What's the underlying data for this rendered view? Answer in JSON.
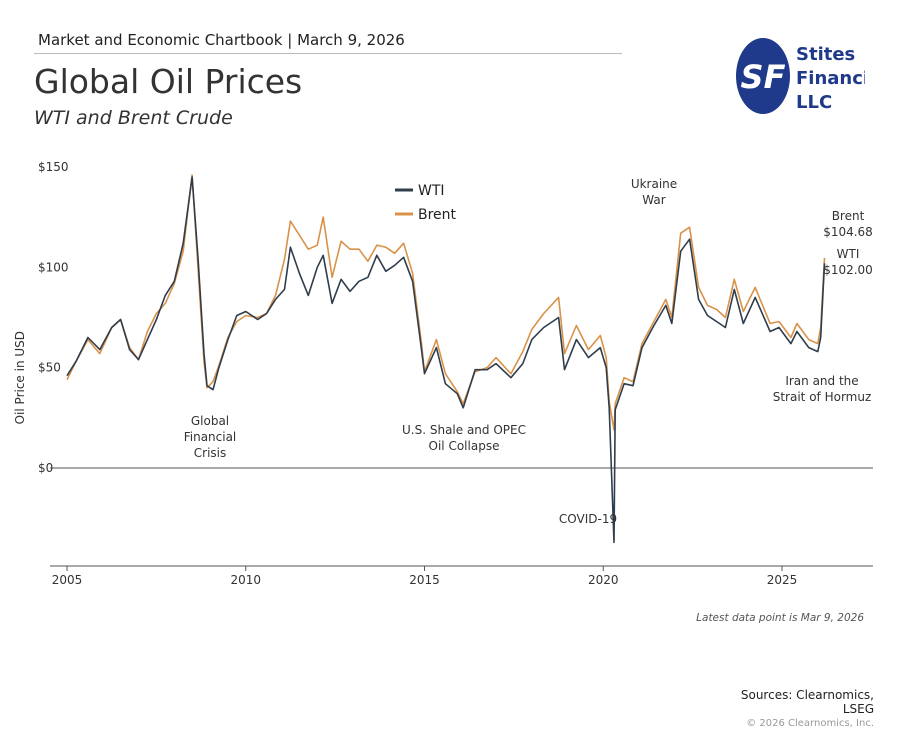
{
  "header": {
    "chartbook": "Market and Economic Chartbook | March 9, 2026",
    "title": "Global Oil Prices",
    "subtitle": "WTI and Brent Crude"
  },
  "logo": {
    "text_lines": [
      "Stites",
      "Financial",
      "LLC"
    ],
    "monogram": "SF",
    "color": "#1f3a8a"
  },
  "footer": {
    "latest": "Latest data point is Mar 9, 2026",
    "sources_line1": "Sources: Clearnomics,",
    "sources_line2": "LSEG",
    "copyright": "© 2026 Clearnomics, Inc."
  },
  "chart_data": {
    "type": "line",
    "ylabel": "Oil Price in USD",
    "xlabel": "",
    "ylim": [
      -40,
      150
    ],
    "xlim": [
      "2005-01-01",
      "2027-07-01"
    ],
    "yticks": [
      {
        "v": 0,
        "label": "$0"
      },
      {
        "v": 50,
        "label": "$50"
      },
      {
        "v": 100,
        "label": "$100"
      },
      {
        "v": 150,
        "label": "$150"
      }
    ],
    "xticks": [
      {
        "v": 2005,
        "label": "2005"
      },
      {
        "v": 2010,
        "label": "2010"
      },
      {
        "v": 2015,
        "label": "2015"
      },
      {
        "v": 2020,
        "label": "2020"
      },
      {
        "v": 2025,
        "label": "2025"
      }
    ],
    "grid": false,
    "legend": {
      "placement": "top-center",
      "entries": [
        "WTI",
        "Brent"
      ]
    },
    "colors": {
      "WTI": "#2f3d4c",
      "Brent": "#d9924a"
    },
    "dates": [
      "2005-01",
      "2005-04",
      "2005-08",
      "2005-12",
      "2006-04",
      "2006-07",
      "2006-10",
      "2007-01",
      "2007-04",
      "2007-07",
      "2007-10",
      "2008-01",
      "2008-04",
      "2008-07",
      "2008-09",
      "2008-11",
      "2008-12",
      "2009-02",
      "2009-04",
      "2009-07",
      "2009-10",
      "2010-01",
      "2010-05",
      "2010-08",
      "2010-11",
      "2011-02",
      "2011-04",
      "2011-07",
      "2011-10",
      "2012-01",
      "2012-03",
      "2012-06",
      "2012-09",
      "2012-12",
      "2013-03",
      "2013-06",
      "2013-09",
      "2013-12",
      "2014-03",
      "2014-06",
      "2014-09",
      "2014-12",
      "2015-01",
      "2015-05",
      "2015-08",
      "2015-12",
      "2016-02",
      "2016-06",
      "2016-10",
      "2017-01",
      "2017-06",
      "2017-10",
      "2018-01",
      "2018-05",
      "2018-10",
      "2018-12",
      "2019-04",
      "2019-08",
      "2019-12",
      "2020-02",
      "2020-03",
      "2020-04-20",
      "2020-05",
      "2020-08",
      "2020-11",
      "2021-02",
      "2021-06",
      "2021-10",
      "2021-12",
      "2022-03",
      "2022-06",
      "2022-09",
      "2022-12",
      "2023-03",
      "2023-06",
      "2023-09",
      "2023-12",
      "2024-04",
      "2024-09",
      "2024-12",
      "2025-04",
      "2025-06",
      "2025-10",
      "2026-01",
      "2026-02",
      "2026-03-09"
    ],
    "series": [
      {
        "name": "WTI",
        "values": [
          46,
          53,
          65,
          59,
          70,
          74,
          59,
          54,
          64,
          74,
          86,
          93,
          112,
          145,
          104,
          57,
          41,
          39,
          50,
          64,
          76,
          78,
          74,
          77,
          84,
          89,
          110,
          97,
          86,
          100,
          106,
          82,
          94,
          88,
          93,
          95,
          106,
          98,
          101,
          105,
          93,
          59,
          47,
          60,
          42,
          37,
          30,
          49,
          49,
          52,
          45,
          52,
          64,
          70,
          75,
          49,
          64,
          55,
          60,
          50,
          30,
          -37,
          29,
          42,
          41,
          60,
          71,
          81,
          72,
          108,
          114,
          84,
          76,
          73,
          70,
          89,
          72,
          85,
          68,
          70,
          62,
          68,
          60,
          58,
          65,
          102.0
        ]
      },
      {
        "name": "Brent",
        "values": [
          44,
          53,
          64,
          57,
          70,
          74,
          60,
          54,
          68,
          77,
          82,
          92,
          108,
          146,
          99,
          53,
          40,
          43,
          51,
          65,
          73,
          76,
          75,
          77,
          86,
          104,
          123,
          116,
          109,
          111,
          125,
          95,
          113,
          109,
          109,
          103,
          111,
          110,
          107,
          112,
          97,
          62,
          48,
          64,
          47,
          38,
          32,
          48,
          50,
          55,
          47,
          58,
          69,
          77,
          85,
          57,
          71,
          59,
          66,
          55,
          33,
          19,
          32,
          45,
          43,
          62,
          73,
          84,
          75,
          117,
          120,
          90,
          81,
          79,
          75,
          94,
          78,
          90,
          72,
          73,
          65,
          72,
          64,
          62,
          70,
          104.68
        ]
      }
    ],
    "annotations": [
      {
        "id": "gfc",
        "lines": [
          "Global",
          "Financial",
          "Crisis"
        ]
      },
      {
        "id": "shale",
        "lines": [
          "U.S. Shale and OPEC",
          "Oil Collapse"
        ]
      },
      {
        "id": "covid",
        "lines": [
          "COVID-19"
        ]
      },
      {
        "id": "ukraine",
        "lines": [
          "Ukraine",
          "War"
        ]
      },
      {
        "id": "hormuz",
        "lines": [
          "Iran and the",
          "Strait of Hormuz"
        ]
      },
      {
        "id": "brent_last",
        "lines": [
          "Brent",
          "$104.68"
        ]
      },
      {
        "id": "wti_last",
        "lines": [
          "WTI",
          "$102.00"
        ]
      }
    ]
  }
}
